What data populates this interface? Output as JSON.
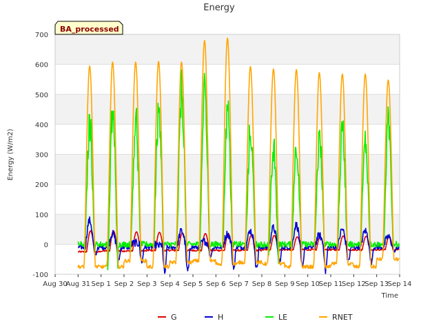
{
  "chart_data": {
    "type": "line",
    "title": "Energy",
    "xlabel": "Time",
    "ylabel": "Energy (W/m2)",
    "xlim": [
      "2023-08-30",
      "2023-09-14"
    ],
    "ylim": [
      -100,
      700
    ],
    "x_tick_labels": [
      "Aug 30",
      "Aug 31",
      "Sep 1",
      "Sep 2",
      "Sep 3",
      "Sep 4",
      "Sep 5",
      "Sep 6",
      "Sep 7",
      "Sep 8",
      "Sep 9",
      "Sep 10",
      "Sep 11",
      "Sep 12",
      "Sep 13",
      "Sep 14"
    ],
    "y_ticks": [
      -100,
      0,
      100,
      200,
      300,
      400,
      500,
      600,
      700
    ],
    "grid": true,
    "alternating_bands": true,
    "legend_position": "bottom-center",
    "badge": "BA_processed",
    "series": [
      {
        "name": "G",
        "color": "#dd0000",
        "days": [
          "2023-08-31",
          "2023-09-01",
          "2023-09-02",
          "2023-09-03",
          "2023-09-04",
          "2023-09-05",
          "2023-09-06",
          "2023-09-07",
          "2023-09-08",
          "2023-09-09",
          "2023-09-10",
          "2023-09-11",
          "2023-09-12",
          "2023-09-13"
        ],
        "daily_max": [
          45,
          45,
          42,
          40,
          38,
          36,
          35,
          30,
          30,
          25,
          25,
          28,
          27,
          25
        ],
        "daily_min": [
          -25,
          -22,
          -22,
          -20,
          -20,
          -20,
          -20,
          -20,
          -18,
          -18,
          -18,
          -18,
          -18,
          -18
        ]
      },
      {
        "name": "H",
        "color": "#0000cc",
        "days": [
          "2023-08-31",
          "2023-09-01",
          "2023-09-02",
          "2023-09-03",
          "2023-09-04",
          "2023-09-05",
          "2023-09-06",
          "2023-09-07",
          "2023-09-08",
          "2023-09-09",
          "2023-09-10",
          "2023-09-11",
          "2023-09-12",
          "2023-09-13"
        ],
        "daily_max": [
          80,
          35,
          5,
          -5,
          45,
          10,
          35,
          45,
          55,
          65,
          30,
          50,
          45,
          25
        ],
        "daily_min": [
          -40,
          -60,
          -70,
          -100,
          -95,
          -50,
          -95,
          -95,
          -70,
          -75,
          -100,
          -65,
          -70,
          -30
        ]
      },
      {
        "name": "LE",
        "color": "#00ee00",
        "days": [
          "2023-08-31",
          "2023-09-01",
          "2023-09-02",
          "2023-09-03",
          "2023-09-04",
          "2023-09-05",
          "2023-09-06",
          "2023-09-07",
          "2023-09-08",
          "2023-09-09",
          "2023-09-10",
          "2023-09-11",
          "2023-09-12",
          "2023-09-13"
        ],
        "daily_max": [
          460,
          510,
          475,
          505,
          585,
          590,
          510,
          430,
          365,
          375,
          400,
          435,
          385,
          455
        ],
        "daily_min": [
          -15,
          -70,
          -10,
          -10,
          -15,
          -15,
          -15,
          -10,
          -50,
          -10,
          -10,
          -10,
          -10,
          -15
        ]
      },
      {
        "name": "RNET",
        "color": "#ffa500",
        "days": [
          "2023-08-31",
          "2023-09-01",
          "2023-09-02",
          "2023-09-03",
          "2023-09-04",
          "2023-09-05",
          "2023-09-06",
          "2023-09-07",
          "2023-09-08",
          "2023-09-09",
          "2023-09-10",
          "2023-09-11",
          "2023-09-12",
          "2023-09-13"
        ],
        "daily_max": [
          595,
          608,
          608,
          610,
          608,
          680,
          688,
          593,
          585,
          583,
          573,
          568,
          568,
          548
        ],
        "daily_min": [
          -75,
          -75,
          -55,
          -75,
          -60,
          -55,
          -65,
          -60,
          -65,
          -75,
          -75,
          -65,
          -75,
          -50
        ]
      }
    ]
  }
}
